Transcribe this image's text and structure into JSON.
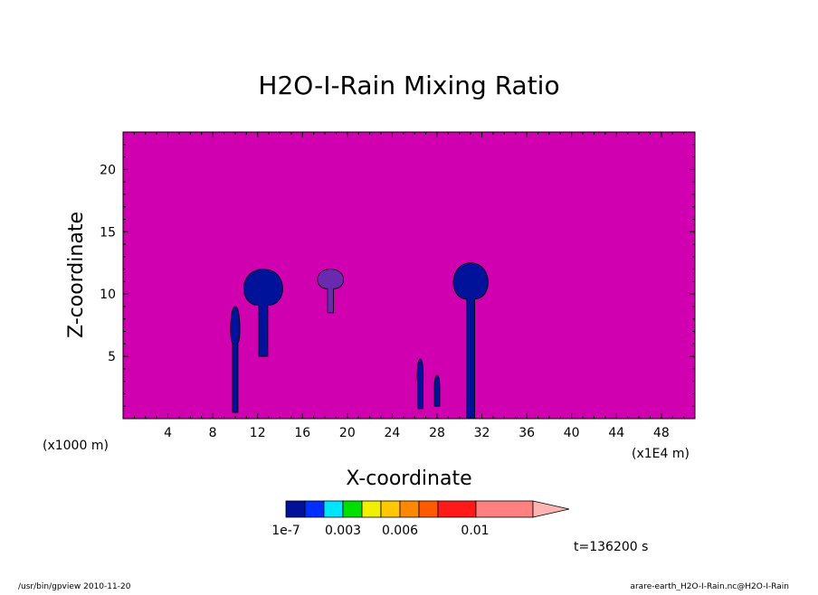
{
  "chart_data": {
    "type": "heatmap",
    "title": "H2O-I-Rain Mixing Ratio",
    "xlabel": "X-coordinate",
    "ylabel": "Z-coordinate",
    "x_unit": "(x1E4 m)",
    "y_unit": "(x1000 m)",
    "xlim": [
      0,
      51
    ],
    "ylim": [
      0,
      23
    ],
    "x_ticks": [
      4,
      8,
      12,
      16,
      20,
      24,
      28,
      32,
      36,
      40,
      44,
      48
    ],
    "y_ticks": [
      5,
      10,
      15,
      20
    ],
    "background_color": "#d000b0",
    "colorbar": {
      "levels": [
        "1e-7",
        "0.003",
        "0.006",
        "0.01"
      ],
      "colors": [
        "#00129a",
        "#0030ff",
        "#00e5ff",
        "#00e000",
        "#f0f000",
        "#ffc800",
        "#ff8800",
        "#ff5a00",
        "#ff1a1a",
        "#ff8080",
        "#ffb4b4"
      ]
    },
    "features": [
      {
        "x": 10,
        "z_bottom": 0.5,
        "z_top": 9,
        "width": 1.0,
        "color": "#00129a"
      },
      {
        "x": 12.5,
        "z_bottom": 5,
        "z_top": 12,
        "width": 4.5,
        "color": "#00129a"
      },
      {
        "x": 18.5,
        "z_bottom": 8.5,
        "z_top": 12,
        "width": 3.0,
        "color": "#6a2ab0"
      },
      {
        "x": 26.5,
        "z_bottom": 0.8,
        "z_top": 4.8,
        "width": 0.6,
        "color": "#00129a"
      },
      {
        "x": 28,
        "z_bottom": 1.0,
        "z_top": 3.5,
        "width": 0.5,
        "color": "#00129a"
      },
      {
        "x": 31,
        "z_bottom": 0,
        "z_top": 12.5,
        "width": 4.0,
        "color": "#00129a"
      }
    ],
    "annotation": "t=136200 s"
  },
  "footer": {
    "left": "/usr/bin/gpview  2010-11-20",
    "right": "arare-earth_H2O-I-Rain.nc@H2O-I-Rain"
  }
}
